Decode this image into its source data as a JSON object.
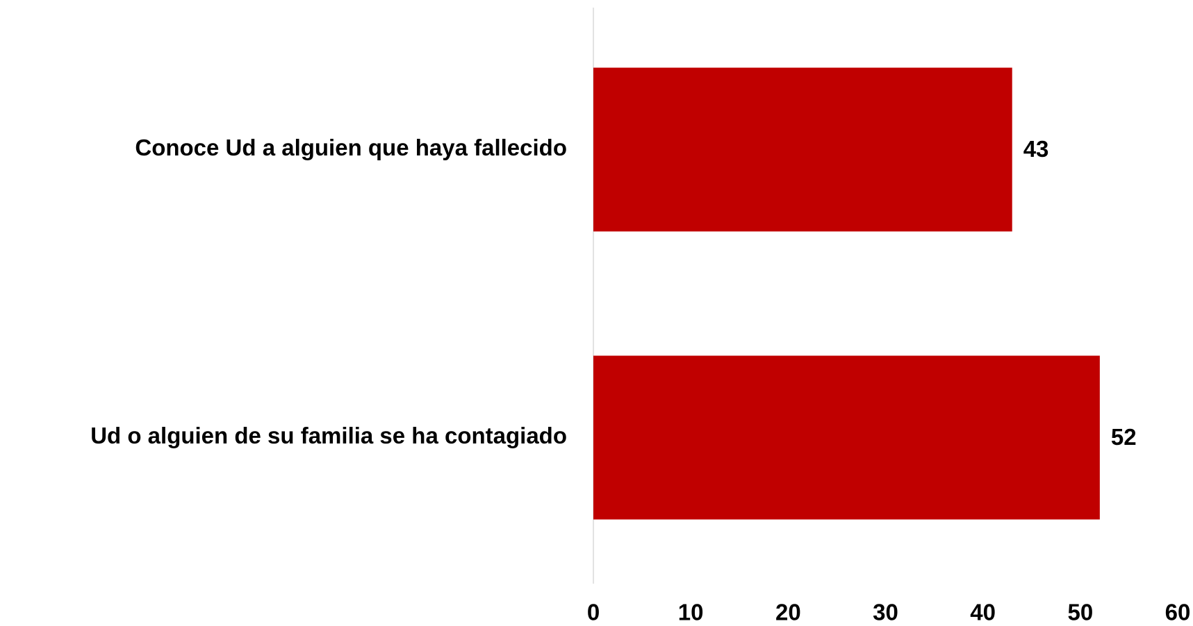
{
  "chart_data": {
    "type": "bar",
    "orientation": "horizontal",
    "categories": [
      "Conoce Ud a alguien que haya fallecido",
      "Ud o alguien de su familia se ha contagiado"
    ],
    "values": [
      43,
      52
    ],
    "color": "#c00000",
    "xlim": [
      0,
      60
    ],
    "xticks": [
      0,
      10,
      20,
      30,
      40,
      50,
      60
    ]
  }
}
